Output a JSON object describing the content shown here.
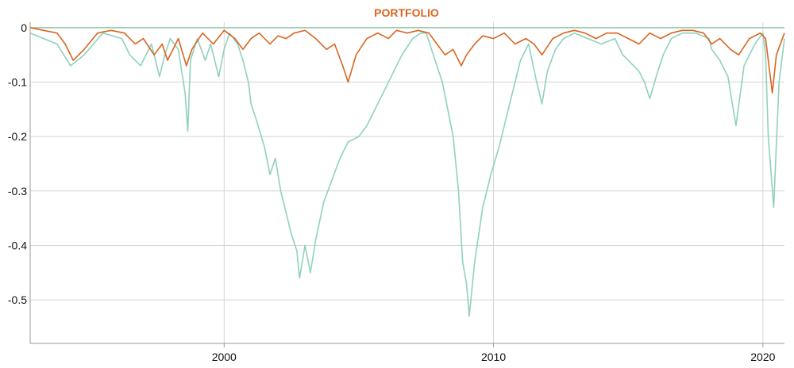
{
  "chart_data": {
    "type": "line",
    "title": "PORTFOLIO",
    "xlabel": "",
    "ylabel": "",
    "xlim": [
      1992.8,
      2020.8
    ],
    "ylim": [
      -0.58,
      0.01
    ],
    "x_ticks": [
      2000,
      2010,
      2020
    ],
    "y_ticks": [
      0,
      -0.1,
      -0.2,
      -0.3,
      -0.4,
      -0.5
    ],
    "y_tick_labels": [
      "0",
      "-0.1",
      "-0.2",
      "-0.3",
      "-0.4",
      "-0.5"
    ],
    "grid": true,
    "legend": "none",
    "colors": {
      "title": "#d9651f",
      "portfolio": "#d9651f",
      "benchmark": "#8fd1be",
      "zero_line": "#8fc4a9",
      "grid": "#d4d4d4",
      "axis": "#999999"
    },
    "series": [
      {
        "key": "benchmark",
        "x": [
          1992.8,
          1993.3,
          1993.8,
          1994.3,
          1994.8,
          1995.5,
          1996.2,
          1996.5,
          1996.9,
          1997.3,
          1997.6,
          1997.8,
          1998.0,
          1998.3,
          1998.55,
          1998.65,
          1998.75,
          1999.0,
          1999.3,
          1999.5,
          1999.8,
          2000.0,
          2000.2,
          2000.5,
          2000.7,
          2000.9,
          2001.0,
          2001.2,
          2001.5,
          2001.7,
          2001.9,
          2002.1,
          2002.3,
          2002.5,
          2002.7,
          2002.8,
          2002.9,
          2003.0,
          2003.2,
          2003.4,
          2003.7,
          2004.0,
          2004.3,
          2004.6,
          2005.0,
          2005.3,
          2005.6,
          2006.0,
          2006.3,
          2006.6,
          2007.0,
          2007.3,
          2007.5,
          2007.7,
          2007.9,
          2008.1,
          2008.3,
          2008.5,
          2008.7,
          2008.85,
          2009.0,
          2009.1,
          2009.3,
          2009.6,
          2009.9,
          2010.2,
          2010.5,
          2010.8,
          2011.0,
          2011.3,
          2011.6,
          2011.8,
          2012.0,
          2012.3,
          2012.6,
          2013.0,
          2013.5,
          2014.0,
          2014.5,
          2014.8,
          2015.0,
          2015.4,
          2015.6,
          2015.8,
          2016.1,
          2016.3,
          2016.6,
          2017.0,
          2017.5,
          2018.0,
          2018.1,
          2018.4,
          2018.7,
          2018.9,
          2019.0,
          2019.3,
          2019.7,
          2020.0,
          2020.1,
          2020.2,
          2020.4,
          2020.6,
          2020.8
        ],
        "y": [
          -0.01,
          -0.02,
          -0.03,
          -0.07,
          -0.05,
          -0.01,
          -0.02,
          -0.05,
          -0.07,
          -0.03,
          -0.09,
          -0.05,
          -0.02,
          -0.04,
          -0.12,
          -0.19,
          -0.06,
          -0.02,
          -0.06,
          -0.03,
          -0.09,
          -0.04,
          -0.01,
          -0.03,
          -0.06,
          -0.1,
          -0.14,
          -0.17,
          -0.22,
          -0.27,
          -0.24,
          -0.3,
          -0.34,
          -0.38,
          -0.41,
          -0.46,
          -0.43,
          -0.4,
          -0.45,
          -0.39,
          -0.32,
          -0.28,
          -0.24,
          -0.21,
          -0.2,
          -0.18,
          -0.15,
          -0.11,
          -0.08,
          -0.05,
          -0.02,
          -0.01,
          -0.01,
          -0.04,
          -0.07,
          -0.1,
          -0.15,
          -0.2,
          -0.3,
          -0.43,
          -0.47,
          -0.53,
          -0.43,
          -0.33,
          -0.27,
          -0.22,
          -0.16,
          -0.1,
          -0.06,
          -0.03,
          -0.1,
          -0.14,
          -0.08,
          -0.04,
          -0.02,
          -0.01,
          -0.02,
          -0.03,
          -0.02,
          -0.05,
          -0.06,
          -0.08,
          -0.1,
          -0.13,
          -0.08,
          -0.05,
          -0.02,
          -0.01,
          -0.01,
          -0.02,
          -0.04,
          -0.06,
          -0.09,
          -0.15,
          -0.18,
          -0.07,
          -0.03,
          -0.01,
          -0.05,
          -0.2,
          -0.33,
          -0.1,
          -0.02
        ]
      },
      {
        "key": "portfolio",
        "x": [
          1992.8,
          1993.3,
          1993.8,
          1994.1,
          1994.4,
          1994.8,
          1995.3,
          1995.8,
          1996.3,
          1996.7,
          1997.0,
          1997.4,
          1997.7,
          1997.9,
          1998.3,
          1998.6,
          1998.8,
          1999.2,
          1999.6,
          2000.0,
          2000.4,
          2000.7,
          2001.0,
          2001.3,
          2001.7,
          2002.0,
          2002.3,
          2002.6,
          2003.0,
          2003.4,
          2003.8,
          2004.1,
          2004.4,
          2004.6,
          2004.9,
          2005.3,
          2005.7,
          2006.1,
          2006.4,
          2006.8,
          2007.2,
          2007.6,
          2007.9,
          2008.2,
          2008.5,
          2008.8,
          2009.0,
          2009.3,
          2009.6,
          2010.0,
          2010.4,
          2010.8,
          2011.2,
          2011.5,
          2011.8,
          2012.2,
          2012.6,
          2013.0,
          2013.4,
          2013.8,
          2014.2,
          2014.6,
          2015.0,
          2015.4,
          2015.8,
          2016.2,
          2016.6,
          2017.0,
          2017.4,
          2017.8,
          2018.1,
          2018.4,
          2018.8,
          2019.1,
          2019.5,
          2019.9,
          2020.1,
          2020.2,
          2020.35,
          2020.5,
          2020.8
        ],
        "y": [
          0.0,
          -0.005,
          -0.01,
          -0.03,
          -0.06,
          -0.04,
          -0.01,
          -0.005,
          -0.01,
          -0.03,
          -0.02,
          -0.05,
          -0.03,
          -0.06,
          -0.02,
          -0.07,
          -0.04,
          -0.01,
          -0.03,
          -0.005,
          -0.02,
          -0.04,
          -0.02,
          -0.01,
          -0.03,
          -0.015,
          -0.02,
          -0.01,
          -0.005,
          -0.02,
          -0.04,
          -0.03,
          -0.07,
          -0.1,
          -0.05,
          -0.02,
          -0.01,
          -0.02,
          -0.005,
          -0.01,
          -0.005,
          -0.01,
          -0.03,
          -0.05,
          -0.04,
          -0.07,
          -0.05,
          -0.03,
          -0.015,
          -0.02,
          -0.01,
          -0.03,
          -0.02,
          -0.03,
          -0.05,
          -0.02,
          -0.01,
          -0.005,
          -0.01,
          -0.02,
          -0.01,
          -0.01,
          -0.02,
          -0.03,
          -0.01,
          -0.02,
          -0.01,
          -0.005,
          -0.005,
          -0.01,
          -0.03,
          -0.02,
          -0.04,
          -0.05,
          -0.02,
          -0.01,
          -0.02,
          -0.06,
          -0.12,
          -0.05,
          -0.01
        ]
      }
    ]
  }
}
